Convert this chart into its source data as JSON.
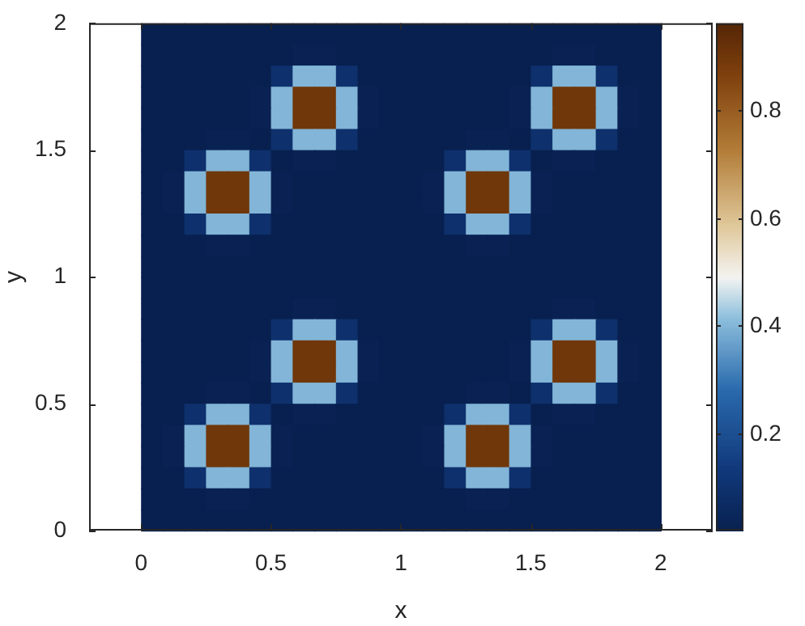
{
  "chart_data": {
    "type": "heatmap",
    "xlabel": "x",
    "ylabel": "y",
    "x": [
      0.0417,
      0.125,
      0.2083,
      0.2917,
      0.375,
      0.4583,
      0.5417,
      0.625,
      0.7083,
      0.7917,
      0.875,
      0.9583,
      1.0417,
      1.125,
      1.2083,
      1.2917,
      1.375,
      1.4583,
      1.5417,
      1.625,
      1.7083,
      1.7917,
      1.875,
      1.9583
    ],
    "y": [
      1.9583,
      1.875,
      1.7917,
      1.7083,
      1.625,
      1.5417,
      1.4583,
      1.375,
      1.2917,
      1.2083,
      1.125,
      1.0417,
      0.9583,
      0.875,
      0.7917,
      0.7083,
      0.625,
      0.5417,
      0.4583,
      0.375,
      0.2917,
      0.2083,
      0.125,
      0.0417
    ],
    "xlim": [
      -0.2,
      2.2
    ],
    "ylim": [
      0,
      2
    ],
    "xticks": [
      0,
      0.5,
      1,
      1.5,
      2
    ],
    "yticks": [
      0,
      0.5,
      1,
      1.5,
      2
    ],
    "clim": [
      0.02,
      0.96
    ],
    "cticks": [
      0.2,
      0.4,
      0.6,
      0.8
    ],
    "cells": [
      [
        0.02,
        0.02,
        0.02,
        0.02,
        0.02,
        0.02,
        0.02,
        0.02,
        0.02,
        0.02,
        0.02,
        0.02,
        0.02,
        0.02,
        0.02,
        0.02,
        0.02,
        0.02,
        0.02,
        0.02,
        0.02,
        0.02,
        0.02,
        0.02
      ],
      [
        0.02,
        0.02,
        0.02,
        0.02,
        0.02,
        0.02,
        0.02,
        0.03,
        0.03,
        0.02,
        0.02,
        0.02,
        0.02,
        0.02,
        0.02,
        0.02,
        0.02,
        0.02,
        0.02,
        0.03,
        0.03,
        0.02,
        0.02,
        0.02
      ],
      [
        0.02,
        0.02,
        0.02,
        0.02,
        0.02,
        0.02,
        0.1,
        0.4,
        0.4,
        0.1,
        0.02,
        0.02,
        0.02,
        0.02,
        0.02,
        0.02,
        0.02,
        0.02,
        0.1,
        0.4,
        0.4,
        0.1,
        0.02,
        0.02
      ],
      [
        0.02,
        0.02,
        0.02,
        0.02,
        0.02,
        0.03,
        0.4,
        0.9,
        0.9,
        0.4,
        0.03,
        0.02,
        0.02,
        0.02,
        0.02,
        0.02,
        0.02,
        0.03,
        0.4,
        0.9,
        0.9,
        0.4,
        0.03,
        0.02
      ],
      [
        0.02,
        0.02,
        0.02,
        0.02,
        0.02,
        0.03,
        0.4,
        0.9,
        0.9,
        0.4,
        0.03,
        0.02,
        0.02,
        0.02,
        0.02,
        0.02,
        0.02,
        0.03,
        0.4,
        0.9,
        0.9,
        0.4,
        0.03,
        0.02
      ],
      [
        0.02,
        0.02,
        0.02,
        0.03,
        0.03,
        0.02,
        0.1,
        0.4,
        0.4,
        0.1,
        0.02,
        0.02,
        0.02,
        0.02,
        0.02,
        0.03,
        0.03,
        0.02,
        0.1,
        0.4,
        0.4,
        0.1,
        0.02,
        0.02
      ],
      [
        0.02,
        0.02,
        0.1,
        0.4,
        0.4,
        0.1,
        0.02,
        0.03,
        0.03,
        0.02,
        0.02,
        0.02,
        0.02,
        0.02,
        0.1,
        0.4,
        0.4,
        0.1,
        0.02,
        0.03,
        0.03,
        0.02,
        0.02,
        0.02
      ],
      [
        0.02,
        0.03,
        0.4,
        0.9,
        0.9,
        0.4,
        0.03,
        0.02,
        0.02,
        0.02,
        0.02,
        0.02,
        0.02,
        0.03,
        0.4,
        0.9,
        0.9,
        0.4,
        0.03,
        0.02,
        0.02,
        0.02,
        0.02,
        0.02
      ],
      [
        0.02,
        0.03,
        0.4,
        0.9,
        0.9,
        0.4,
        0.03,
        0.02,
        0.02,
        0.02,
        0.02,
        0.02,
        0.02,
        0.03,
        0.4,
        0.9,
        0.9,
        0.4,
        0.03,
        0.02,
        0.02,
        0.02,
        0.02,
        0.02
      ],
      [
        0.02,
        0.02,
        0.1,
        0.4,
        0.4,
        0.1,
        0.02,
        0.02,
        0.02,
        0.02,
        0.02,
        0.02,
        0.02,
        0.02,
        0.1,
        0.4,
        0.4,
        0.1,
        0.02,
        0.02,
        0.02,
        0.02,
        0.02,
        0.02
      ],
      [
        0.02,
        0.02,
        0.02,
        0.03,
        0.03,
        0.02,
        0.02,
        0.02,
        0.02,
        0.02,
        0.02,
        0.02,
        0.02,
        0.02,
        0.02,
        0.03,
        0.03,
        0.02,
        0.02,
        0.02,
        0.02,
        0.02,
        0.02,
        0.02
      ],
      [
        0.02,
        0.02,
        0.02,
        0.02,
        0.02,
        0.02,
        0.02,
        0.02,
        0.02,
        0.02,
        0.02,
        0.02,
        0.02,
        0.02,
        0.02,
        0.02,
        0.02,
        0.02,
        0.02,
        0.02,
        0.02,
        0.02,
        0.02,
        0.02
      ],
      [
        0.02,
        0.02,
        0.02,
        0.02,
        0.02,
        0.02,
        0.02,
        0.02,
        0.02,
        0.02,
        0.02,
        0.02,
        0.02,
        0.02,
        0.02,
        0.02,
        0.02,
        0.02,
        0.02,
        0.02,
        0.02,
        0.02,
        0.02,
        0.02
      ],
      [
        0.02,
        0.02,
        0.02,
        0.02,
        0.02,
        0.02,
        0.02,
        0.03,
        0.03,
        0.02,
        0.02,
        0.02,
        0.02,
        0.02,
        0.02,
        0.02,
        0.02,
        0.02,
        0.02,
        0.03,
        0.03,
        0.02,
        0.02,
        0.02
      ],
      [
        0.02,
        0.02,
        0.02,
        0.02,
        0.02,
        0.02,
        0.1,
        0.4,
        0.4,
        0.1,
        0.02,
        0.02,
        0.02,
        0.02,
        0.02,
        0.02,
        0.02,
        0.02,
        0.1,
        0.4,
        0.4,
        0.1,
        0.02,
        0.02
      ],
      [
        0.02,
        0.02,
        0.02,
        0.02,
        0.02,
        0.03,
        0.4,
        0.9,
        0.9,
        0.4,
        0.03,
        0.02,
        0.02,
        0.02,
        0.02,
        0.02,
        0.02,
        0.03,
        0.4,
        0.9,
        0.9,
        0.4,
        0.03,
        0.02
      ],
      [
        0.02,
        0.02,
        0.02,
        0.02,
        0.02,
        0.03,
        0.4,
        0.9,
        0.9,
        0.4,
        0.03,
        0.02,
        0.02,
        0.02,
        0.02,
        0.02,
        0.02,
        0.03,
        0.4,
        0.9,
        0.9,
        0.4,
        0.03,
        0.02
      ],
      [
        0.02,
        0.02,
        0.02,
        0.03,
        0.03,
        0.02,
        0.1,
        0.4,
        0.4,
        0.1,
        0.02,
        0.02,
        0.02,
        0.02,
        0.02,
        0.03,
        0.03,
        0.02,
        0.1,
        0.4,
        0.4,
        0.1,
        0.02,
        0.02
      ],
      [
        0.02,
        0.02,
        0.1,
        0.4,
        0.4,
        0.1,
        0.02,
        0.03,
        0.03,
        0.02,
        0.02,
        0.02,
        0.02,
        0.02,
        0.1,
        0.4,
        0.4,
        0.1,
        0.02,
        0.03,
        0.03,
        0.02,
        0.02,
        0.02
      ],
      [
        0.02,
        0.03,
        0.4,
        0.9,
        0.9,
        0.4,
        0.03,
        0.02,
        0.02,
        0.02,
        0.02,
        0.02,
        0.02,
        0.03,
        0.4,
        0.9,
        0.9,
        0.4,
        0.03,
        0.02,
        0.02,
        0.02,
        0.02,
        0.02
      ],
      [
        0.02,
        0.03,
        0.4,
        0.9,
        0.9,
        0.4,
        0.03,
        0.02,
        0.02,
        0.02,
        0.02,
        0.02,
        0.02,
        0.03,
        0.4,
        0.9,
        0.9,
        0.4,
        0.03,
        0.02,
        0.02,
        0.02,
        0.02,
        0.02
      ],
      [
        0.02,
        0.02,
        0.1,
        0.4,
        0.4,
        0.1,
        0.02,
        0.02,
        0.02,
        0.02,
        0.02,
        0.02,
        0.02,
        0.02,
        0.1,
        0.4,
        0.4,
        0.1,
        0.02,
        0.02,
        0.02,
        0.02,
        0.02,
        0.02
      ],
      [
        0.02,
        0.02,
        0.02,
        0.03,
        0.03,
        0.02,
        0.02,
        0.02,
        0.02,
        0.02,
        0.02,
        0.02,
        0.02,
        0.02,
        0.02,
        0.03,
        0.03,
        0.02,
        0.02,
        0.02,
        0.02,
        0.02,
        0.02,
        0.02
      ],
      [
        0.02,
        0.02,
        0.02,
        0.02,
        0.02,
        0.02,
        0.02,
        0.02,
        0.02,
        0.02,
        0.02,
        0.02,
        0.02,
        0.02,
        0.02,
        0.02,
        0.02,
        0.02,
        0.02,
        0.02,
        0.02,
        0.02,
        0.02,
        0.02
      ]
    ]
  }
}
